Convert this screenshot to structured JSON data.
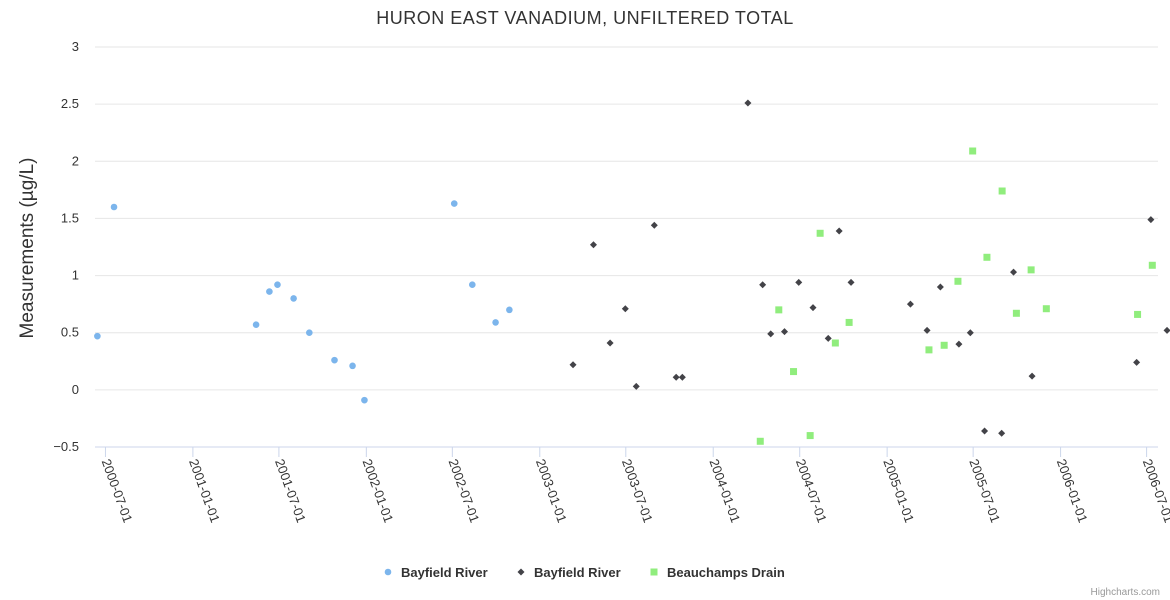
{
  "chart_data": {
    "type": "scatter",
    "title": "HURON EAST VANADIUM, UNFILTERED TOTAL",
    "ylabel": "Measurements (µg/L)",
    "xlabel": "",
    "ylim": [
      -0.5,
      3
    ],
    "xlim": [
      "2000-06-09",
      "2006-07-25"
    ],
    "y_ticks": [
      "3",
      "2.5",
      "2",
      "1.5",
      "1",
      "0.5",
      "0",
      "−0.5"
    ],
    "y_tick_values": [
      3,
      2.5,
      2,
      1.5,
      1,
      0.5,
      0,
      -0.5
    ],
    "x_ticks": [
      "2000-07-01",
      "2001-01-01",
      "2001-07-01",
      "2002-01-01",
      "2002-07-01",
      "2003-01-01",
      "2003-07-01",
      "2004-01-01",
      "2004-07-01",
      "2005-01-01",
      "2005-07-01",
      "2006-01-01",
      "2006-07-01"
    ],
    "grid": true,
    "legend_position": "bottom-center",
    "series": [
      {
        "name": "Bayfield River",
        "marker": "circle",
        "color": "#7cb5ec",
        "points": [
          {
            "x": "2000-06-14",
            "y": 0.47
          },
          {
            "x": "2000-07-19",
            "y": 1.6
          },
          {
            "x": "2001-05-14",
            "y": 0.57
          },
          {
            "x": "2001-06-11",
            "y": 0.86
          },
          {
            "x": "2001-06-28",
            "y": 0.92
          },
          {
            "x": "2001-08-01",
            "y": 0.8
          },
          {
            "x": "2001-09-03",
            "y": 0.5
          },
          {
            "x": "2001-10-26",
            "y": 0.26
          },
          {
            "x": "2001-12-03",
            "y": 0.21
          },
          {
            "x": "2001-12-28",
            "y": -0.09
          },
          {
            "x": "2002-07-05",
            "y": 1.63
          },
          {
            "x": "2002-08-12",
            "y": 0.92
          },
          {
            "x": "2002-09-30",
            "y": 0.59
          },
          {
            "x": "2002-10-29",
            "y": 0.7
          }
        ]
      },
      {
        "name": "Bayfield River",
        "marker": "diamond",
        "color": "#434348",
        "points": [
          {
            "x": "2003-03-12",
            "y": 0.22
          },
          {
            "x": "2003-04-24",
            "y": 1.27
          },
          {
            "x": "2003-05-29",
            "y": 0.41
          },
          {
            "x": "2003-06-30",
            "y": 0.71
          },
          {
            "x": "2003-07-23",
            "y": 0.03
          },
          {
            "x": "2003-08-30",
            "y": 1.44
          },
          {
            "x": "2003-10-15",
            "y": 0.11
          },
          {
            "x": "2003-10-28",
            "y": 0.11
          },
          {
            "x": "2004-03-14",
            "y": 2.51
          },
          {
            "x": "2004-04-14",
            "y": 0.92
          },
          {
            "x": "2004-05-01",
            "y": 0.49
          },
          {
            "x": "2004-05-30",
            "y": 0.51
          },
          {
            "x": "2004-06-29",
            "y": 0.94
          },
          {
            "x": "2004-07-29",
            "y": 0.72
          },
          {
            "x": "2004-08-30",
            "y": 0.45
          },
          {
            "x": "2004-09-22",
            "y": 1.39
          },
          {
            "x": "2004-10-17",
            "y": 0.94
          },
          {
            "x": "2005-02-19",
            "y": 0.75
          },
          {
            "x": "2005-03-26",
            "y": 0.52
          },
          {
            "x": "2005-04-23",
            "y": 0.9
          },
          {
            "x": "2005-06-01",
            "y": 0.4
          },
          {
            "x": "2005-06-25",
            "y": 0.5
          },
          {
            "x": "2005-07-25",
            "y": -0.36
          },
          {
            "x": "2005-08-30",
            "y": -0.38
          },
          {
            "x": "2005-09-24",
            "y": 1.03
          },
          {
            "x": "2005-11-02",
            "y": 0.12
          },
          {
            "x": "2006-06-10",
            "y": 0.24
          },
          {
            "x": "2006-07-10",
            "y": 1.49
          },
          {
            "x": "2006-08-13",
            "y": 0.52
          }
        ]
      },
      {
        "name": "Beauchamps Drain",
        "marker": "square",
        "color": "#90ed7d",
        "points": [
          {
            "x": "2004-04-09",
            "y": -0.45
          },
          {
            "x": "2004-05-18",
            "y": 0.7
          },
          {
            "x": "2004-06-18",
            "y": 0.16
          },
          {
            "x": "2004-07-23",
            "y": -0.4
          },
          {
            "x": "2004-08-13",
            "y": 1.37
          },
          {
            "x": "2004-09-14",
            "y": 0.41
          },
          {
            "x": "2004-10-13",
            "y": 0.59
          },
          {
            "x": "2005-03-30",
            "y": 0.35
          },
          {
            "x": "2005-05-01",
            "y": 0.39
          },
          {
            "x": "2005-05-30",
            "y": 0.95
          },
          {
            "x": "2005-06-30",
            "y": 2.09
          },
          {
            "x": "2005-07-30",
            "y": 1.16
          },
          {
            "x": "2005-08-31",
            "y": 1.74
          },
          {
            "x": "2005-09-30",
            "y": 0.67
          },
          {
            "x": "2005-10-31",
            "y": 1.05
          },
          {
            "x": "2005-12-02",
            "y": 0.71
          },
          {
            "x": "2006-06-12",
            "y": 0.66
          },
          {
            "x": "2006-07-13",
            "y": 1.09
          }
        ]
      }
    ]
  },
  "credits": "Highcharts.com"
}
